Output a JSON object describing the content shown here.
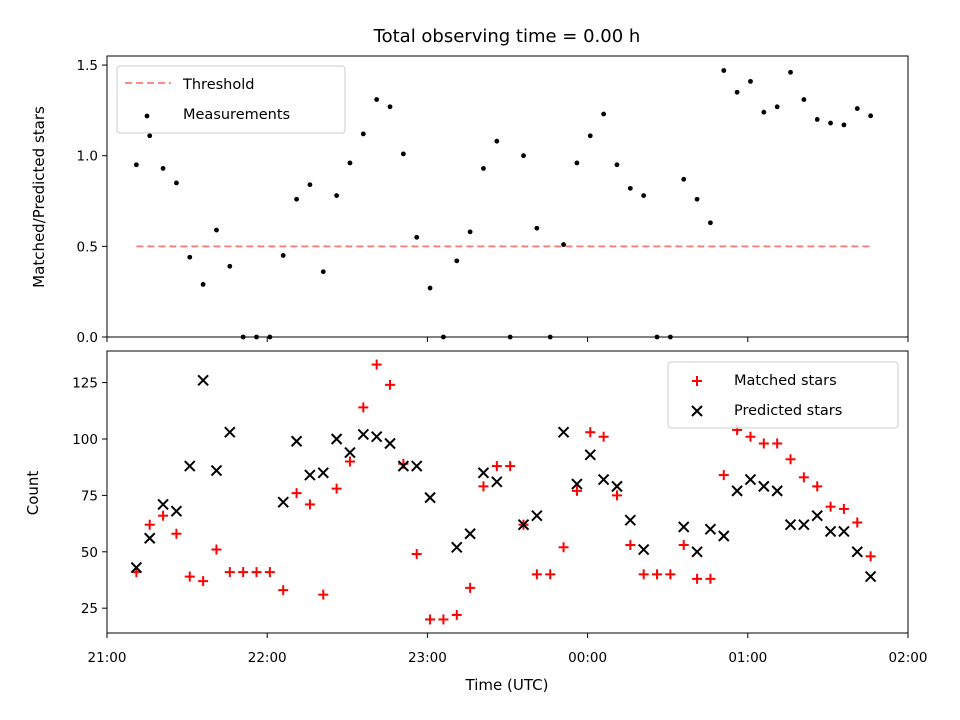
{
  "colors": {
    "threshold": "#ff7777",
    "measurement": "#000000",
    "matched": "#ff0000",
    "predicted": "#000000"
  },
  "chart_data": [
    {
      "type": "scatter",
      "title": "Total observing time = 0.00 h",
      "xlabel": "",
      "ylabel": "Matched/Predicted stars",
      "xlim": [
        "21:00",
        "02:00"
      ],
      "ylim": [
        0,
        1.55
      ],
      "yticks": [
        "0.0",
        "0.5",
        "1.0",
        "1.5"
      ],
      "legend_position": "top-left",
      "legend": [
        "Threshold",
        "Measurements"
      ],
      "threshold": {
        "name": "Threshold",
        "value": 0.5,
        "x_range": [
          "21:11",
          "23:59+1:59"
        ]
      },
      "series": [
        {
          "name": "Measurements",
          "x": [
            "21:11",
            "21:16",
            "21:21",
            "21:26",
            "21:31",
            "21:36",
            "21:41",
            "21:46",
            "21:51",
            "21:56",
            "22:01",
            "22:06",
            "22:11",
            "22:16",
            "22:21",
            "22:26",
            "22:31",
            "22:36",
            "22:41",
            "22:46",
            "22:51",
            "22:56",
            "23:01",
            "23:06",
            "23:11",
            "23:16",
            "23:21",
            "23:26",
            "23:31",
            "23:36",
            "23:41",
            "23:46",
            "23:51",
            "23:56",
            "00:01",
            "00:06",
            "00:11",
            "00:16",
            "00:21",
            "00:26",
            "00:31",
            "00:36",
            "00:41",
            "00:46",
            "00:51",
            "00:56",
            "01:01",
            "01:06",
            "01:11",
            "01:16",
            "01:21",
            "01:26",
            "01:31",
            "01:36",
            "01:41",
            "01:46"
          ],
          "y": [
            0.95,
            1.11,
            0.93,
            0.85,
            0.44,
            0.29,
            0.59,
            0.39,
            0.0,
            0.0,
            0.0,
            0.45,
            0.76,
            0.84,
            0.36,
            0.78,
            0.96,
            1.12,
            1.31,
            1.27,
            1.01,
            0.55,
            0.27,
            0.0,
            0.42,
            0.58,
            0.93,
            1.08,
            0.0,
            1.0,
            0.6,
            0.0,
            0.51,
            0.96,
            1.11,
            1.23,
            0.95,
            0.82,
            0.78,
            0.0,
            0.0,
            0.87,
            0.76,
            0.63,
            1.47,
            1.35,
            1.41,
            1.24,
            1.27,
            1.46,
            1.31,
            1.2,
            1.18,
            1.17,
            1.26,
            1.22
          ]
        }
      ]
    },
    {
      "type": "scatter",
      "title": "",
      "xlabel": "Time (UTC)",
      "ylabel": "Count",
      "xlim": [
        "21:00",
        "02:00"
      ],
      "ylim": [
        14,
        139
      ],
      "xticks": [
        "21:00",
        "22:00",
        "23:00",
        "00:00",
        "01:00",
        "02:00"
      ],
      "yticks": [
        "25",
        "50",
        "75",
        "100",
        "125"
      ],
      "legend_position": "top-right",
      "legend": [
        "Matched stars",
        "Predicted stars"
      ],
      "x": [
        "21:11",
        "21:16",
        "21:21",
        "21:26",
        "21:31",
        "21:36",
        "21:41",
        "21:46",
        "21:51",
        "21:56",
        "22:01",
        "22:06",
        "22:11",
        "22:16",
        "22:21",
        "22:26",
        "22:31",
        "22:36",
        "22:41",
        "22:46",
        "22:51",
        "22:56",
        "23:01",
        "23:06",
        "23:11",
        "23:16",
        "23:21",
        "23:26",
        "23:31",
        "23:36",
        "23:41",
        "23:46",
        "23:51",
        "23:56",
        "00:01",
        "00:06",
        "00:11",
        "00:16",
        "00:21",
        "00:26",
        "00:31",
        "00:36",
        "00:41",
        "00:46",
        "00:51",
        "00:56",
        "01:01",
        "01:06",
        "01:11",
        "01:16",
        "01:21",
        "01:26",
        "01:31",
        "01:36",
        "01:41",
        "01:46"
      ],
      "series": [
        {
          "name": "Matched stars",
          "marker": "+",
          "values": [
            41,
            62,
            66,
            58,
            39,
            37,
            51,
            41,
            41,
            41,
            41,
            33,
            76,
            71,
            31,
            78,
            90,
            114,
            133,
            124,
            89,
            49,
            20,
            20,
            22,
            34,
            79,
            88,
            88,
            62,
            40,
            40,
            52,
            77,
            103,
            101,
            75,
            53,
            40,
            40,
            40,
            53,
            38,
            38,
            84,
            104,
            101,
            98,
            98,
            91,
            83,
            79,
            70,
            69,
            63,
            48
          ]
        },
        {
          "name": "Predicted stars",
          "marker": "x",
          "values": [
            43,
            56,
            71,
            68,
            88,
            126,
            86,
            103,
            null,
            null,
            null,
            72,
            99,
            84,
            85,
            100,
            94,
            102,
            101,
            98,
            88,
            88,
            74,
            null,
            52,
            58,
            85,
            81,
            null,
            62,
            66,
            null,
            103,
            80,
            93,
            82,
            79,
            64,
            51,
            null,
            null,
            61,
            50,
            60,
            57,
            77,
            82,
            79,
            77,
            62,
            62,
            66,
            59,
            59,
            50,
            39
          ]
        }
      ]
    }
  ]
}
